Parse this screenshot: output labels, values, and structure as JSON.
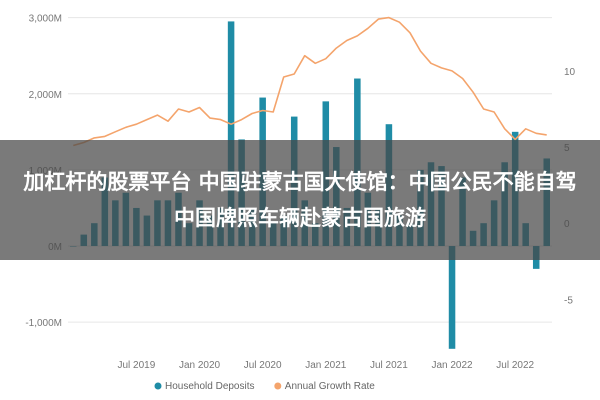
{
  "overlay": {
    "headline": "加杠杆的股票平台 中国驻蒙古国大使馆：中国公民不能自驾中国牌照车辆赴蒙古国旅游"
  },
  "chart_data": {
    "type": "bar",
    "x": [
      "2019-01",
      "2019-02",
      "2019-03",
      "2019-04",
      "2019-05",
      "2019-06",
      "2019-07",
      "2019-08",
      "2019-09",
      "2019-10",
      "2019-11",
      "2019-12",
      "2020-01",
      "2020-02",
      "2020-03",
      "2020-04",
      "2020-05",
      "2020-06",
      "2020-07",
      "2020-08",
      "2020-09",
      "2020-10",
      "2020-11",
      "2020-12",
      "2021-01",
      "2021-02",
      "2021-03",
      "2021-04",
      "2021-05",
      "2021-06",
      "2021-07",
      "2021-08",
      "2021-09",
      "2021-10",
      "2021-11",
      "2021-12",
      "2022-01",
      "2022-02",
      "2022-03",
      "2022-04",
      "2022-05",
      "2022-06",
      "2022-07",
      "2022-08",
      "2022-09",
      "2022-10"
    ],
    "xticks": [
      "Jul 2019",
      "Jan 2020",
      "Jul 2020",
      "Jan 2021",
      "Jul 2021",
      "Jan 2022",
      "Jul 2022"
    ],
    "y_left_ticks": [
      "3,000M",
      "2,000M",
      "1,000M",
      "0M",
      "-1,000M"
    ],
    "y_right_ticks": [
      "10",
      "5",
      "0",
      "-5"
    ],
    "ylim_left": [
      -1300,
      3100
    ],
    "ylim_right": [
      -8,
      14
    ],
    "series": [
      {
        "name": "Household Deposits",
        "type": "bar",
        "axis": "left",
        "color": "#1f8ca6",
        "values": [
          0,
          150,
          300,
          900,
          600,
          700,
          500,
          400,
          600,
          600,
          700,
          300,
          600,
          400,
          500,
          2950,
          1400,
          500,
          1950,
          300,
          400,
          1700,
          600,
          300,
          1900,
          1300,
          500,
          2200,
          700,
          500,
          1600,
          400,
          300,
          1000,
          1100,
          1050,
          -1350,
          900,
          200,
          300,
          600,
          1100,
          1500,
          300,
          -300,
          1150
        ]
      },
      {
        "name": "Annual Growth Rate",
        "type": "line",
        "axis": "right",
        "color": "#f4a46c",
        "values": [
          5.1,
          5.3,
          5.6,
          5.7,
          6.0,
          6.3,
          6.5,
          6.8,
          7.1,
          6.7,
          7.5,
          7.3,
          7.6,
          6.9,
          6.8,
          6.5,
          6.8,
          7.2,
          7.4,
          7.3,
          9.6,
          9.8,
          11.0,
          10.5,
          10.8,
          11.5,
          12.0,
          12.3,
          12.8,
          13.4,
          13.5,
          13.2,
          12.5,
          11.3,
          10.5,
          10.2,
          10.0,
          9.5,
          8.6,
          7.5,
          7.3,
          6.2,
          5.5,
          6.2,
          5.9,
          5.8
        ]
      }
    ],
    "legend": {
      "position": "bottom"
    }
  }
}
